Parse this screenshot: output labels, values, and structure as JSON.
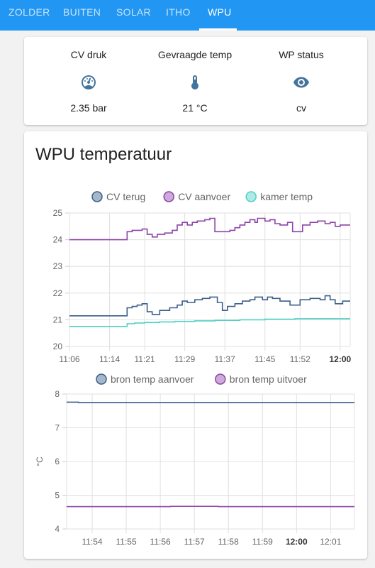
{
  "tabs": [
    {
      "label": "ZOLDER",
      "active": false
    },
    {
      "label": "BUITEN",
      "active": false
    },
    {
      "label": "SOLAR",
      "active": false
    },
    {
      "label": "ITHO",
      "active": false
    },
    {
      "label": "WPU",
      "active": true
    }
  ],
  "colors": {
    "accent": "#2196f3",
    "cv_terug": "#3b5f8a",
    "cv_aanvoer": "#8e44a8",
    "kamer_temp": "#4fd1c5",
    "bron_aanvoer": "#3b5f8a",
    "bron_uitvoer": "#8e44a8",
    "icon": "#44739e"
  },
  "glance": [
    {
      "name": "CV druk",
      "icon": "gauge-icon",
      "state": "2.35 bar"
    },
    {
      "name": "Gevraagde temp",
      "icon": "thermometer-icon",
      "state": "21 °C"
    },
    {
      "name": "WP status",
      "icon": "eye-icon",
      "state": "cv"
    }
  ],
  "history_title": "WPU temperatuur",
  "chart_data": [
    {
      "type": "line",
      "title": "",
      "xlabel": "",
      "ylabel": "",
      "ylim": [
        20,
        25
      ],
      "yticks": [
        "20",
        "21",
        "22",
        "23",
        "24",
        "25"
      ],
      "xticks": [
        "11:06",
        "11:14",
        "11:21",
        "11:29",
        "11:37",
        "11:45",
        "11:52",
        "12:00"
      ],
      "x_tick_minutes": [
        366,
        374,
        381,
        389,
        397,
        405,
        412,
        420
      ],
      "xlim_minutes": [
        366,
        422
      ],
      "legend_position": "top",
      "grid": true,
      "series": [
        {
          "name": "CV terug",
          "color": "#3b5f8a",
          "points": [
            [
              366,
              21.15
            ],
            [
              377.5,
              21.15
            ],
            [
              377.5,
              21.45
            ],
            [
              378.5,
              21.45
            ],
            [
              378.5,
              21.5
            ],
            [
              379.5,
              21.5
            ],
            [
              379.5,
              21.55
            ],
            [
              380.5,
              21.55
            ],
            [
              380.5,
              21.6
            ],
            [
              381.5,
              21.6
            ],
            [
              381.5,
              21.3
            ],
            [
              382.5,
              21.3
            ],
            [
              382.5,
              21.2
            ],
            [
              384,
              21.2
            ],
            [
              384,
              21.35
            ],
            [
              386,
              21.35
            ],
            [
              386,
              21.45
            ],
            [
              387.5,
              21.45
            ],
            [
              387.5,
              21.55
            ],
            [
              388.5,
              21.55
            ],
            [
              388.5,
              21.7
            ],
            [
              389.5,
              21.7
            ],
            [
              389.5,
              21.65
            ],
            [
              391,
              21.65
            ],
            [
              391,
              21.75
            ],
            [
              392.5,
              21.75
            ],
            [
              392.5,
              21.8
            ],
            [
              394,
              21.8
            ],
            [
              394,
              21.85
            ],
            [
              395.5,
              21.85
            ],
            [
              395.5,
              21.65
            ],
            [
              396.5,
              21.65
            ],
            [
              396.5,
              21.35
            ],
            [
              397.5,
              21.35
            ],
            [
              397.5,
              21.5
            ],
            [
              399,
              21.5
            ],
            [
              399,
              21.6
            ],
            [
              400.5,
              21.6
            ],
            [
              400.5,
              21.7
            ],
            [
              402,
              21.7
            ],
            [
              402,
              21.75
            ],
            [
              403,
              21.75
            ],
            [
              403,
              21.85
            ],
            [
              404.5,
              21.85
            ],
            [
              404.5,
              21.75
            ],
            [
              405.5,
              21.75
            ],
            [
              405.5,
              21.85
            ],
            [
              406.5,
              21.85
            ],
            [
              406.5,
              21.8
            ],
            [
              408,
              21.8
            ],
            [
              408,
              21.7
            ],
            [
              410,
              21.7
            ],
            [
              410,
              21.55
            ],
            [
              412,
              21.55
            ],
            [
              412,
              21.75
            ],
            [
              414,
              21.75
            ],
            [
              414,
              21.8
            ],
            [
              416,
              21.8
            ],
            [
              416,
              21.75
            ],
            [
              417,
              21.75
            ],
            [
              417,
              21.9
            ],
            [
              418,
              21.9
            ],
            [
              418,
              21.75
            ],
            [
              419,
              21.75
            ],
            [
              419,
              21.6
            ],
            [
              420.5,
              21.6
            ],
            [
              420.5,
              21.7
            ],
            [
              422,
              21.7
            ]
          ]
        },
        {
          "name": "CV aanvoer",
          "color": "#8e44a8",
          "points": [
            [
              366,
              24.0
            ],
            [
              377.5,
              24.0
            ],
            [
              377.5,
              24.3
            ],
            [
              378.5,
              24.3
            ],
            [
              378.5,
              24.35
            ],
            [
              380.5,
              24.35
            ],
            [
              380.5,
              24.4
            ],
            [
              381.5,
              24.4
            ],
            [
              381.5,
              24.2
            ],
            [
              382.5,
              24.2
            ],
            [
              382.5,
              24.1
            ],
            [
              383.5,
              24.1
            ],
            [
              383.5,
              24.2
            ],
            [
              385,
              24.2
            ],
            [
              385,
              24.25
            ],
            [
              386.5,
              24.25
            ],
            [
              386.5,
              24.35
            ],
            [
              387.5,
              24.35
            ],
            [
              387.5,
              24.55
            ],
            [
              388.5,
              24.55
            ],
            [
              388.5,
              24.65
            ],
            [
              389.5,
              24.65
            ],
            [
              389.5,
              24.55
            ],
            [
              390.5,
              24.55
            ],
            [
              390.5,
              24.65
            ],
            [
              391.5,
              24.65
            ],
            [
              391.5,
              24.7
            ],
            [
              393,
              24.7
            ],
            [
              393,
              24.75
            ],
            [
              394,
              24.75
            ],
            [
              394,
              24.8
            ],
            [
              395,
              24.8
            ],
            [
              395,
              24.3
            ],
            [
              398,
              24.3
            ],
            [
              398,
              24.35
            ],
            [
              399,
              24.35
            ],
            [
              399,
              24.45
            ],
            [
              400,
              24.45
            ],
            [
              400,
              24.55
            ],
            [
              401,
              24.55
            ],
            [
              401,
              24.65
            ],
            [
              402,
              24.65
            ],
            [
              402,
              24.75
            ],
            [
              403,
              24.75
            ],
            [
              403,
              24.65
            ],
            [
              403.5,
              24.65
            ],
            [
              403.5,
              24.8
            ],
            [
              405,
              24.8
            ],
            [
              405,
              24.7
            ],
            [
              406,
              24.7
            ],
            [
              406,
              24.75
            ],
            [
              407,
              24.75
            ],
            [
              407,
              24.6
            ],
            [
              408,
              24.6
            ],
            [
              408,
              24.55
            ],
            [
              409.5,
              24.55
            ],
            [
              409.5,
              24.65
            ],
            [
              410.5,
              24.65
            ],
            [
              410.5,
              24.3
            ],
            [
              412.5,
              24.3
            ],
            [
              412.5,
              24.55
            ],
            [
              414,
              24.55
            ],
            [
              414,
              24.65
            ],
            [
              415.5,
              24.65
            ],
            [
              415.5,
              24.7
            ],
            [
              417,
              24.7
            ],
            [
              417,
              24.6
            ],
            [
              418,
              24.6
            ],
            [
              418,
              24.65
            ],
            [
              419,
              24.65
            ],
            [
              419,
              24.5
            ],
            [
              420,
              24.5
            ],
            [
              420,
              24.55
            ],
            [
              422,
              24.55
            ]
          ]
        },
        {
          "name": "kamer temp",
          "color": "#4fd1c5",
          "points": [
            [
              366,
              20.75
            ],
            [
              377.5,
              20.75
            ],
            [
              377.5,
              20.85
            ],
            [
              379,
              20.85
            ],
            [
              379,
              20.88
            ],
            [
              381,
              20.88
            ],
            [
              381,
              20.9
            ],
            [
              384,
              20.9
            ],
            [
              384,
              20.92
            ],
            [
              387,
              20.92
            ],
            [
              387,
              20.94
            ],
            [
              391,
              20.94
            ],
            [
              391,
              20.96
            ],
            [
              395,
              20.96
            ],
            [
              395,
              20.98
            ],
            [
              400,
              20.98
            ],
            [
              400,
              21.0
            ],
            [
              405,
              21.0
            ],
            [
              405,
              21.02
            ],
            [
              411,
              21.02
            ],
            [
              411,
              21.04
            ],
            [
              422,
              21.04
            ]
          ]
        }
      ]
    },
    {
      "type": "line",
      "title": "",
      "xlabel": "",
      "ylabel": "°C",
      "ylim": [
        4,
        8
      ],
      "yticks": [
        "4",
        "5",
        "6",
        "7",
        "8"
      ],
      "xticks": [
        "11:54",
        "11:55",
        "11:56",
        "11:57",
        "11:58",
        "11:59",
        "12:00",
        "12:01"
      ],
      "x_tick_minutes": [
        414,
        415,
        416,
        417,
        418,
        419,
        420,
        421
      ],
      "xlim_minutes": [
        413.25,
        421.7
      ],
      "legend_position": "top",
      "grid": true,
      "series": [
        {
          "name": "bron temp aanvoer",
          "color": "#3b5f8a",
          "points": [
            [
              413.25,
              7.76
            ],
            [
              413.6,
              7.76
            ],
            [
              413.6,
              7.75
            ],
            [
              421.7,
              7.75
            ]
          ]
        },
        {
          "name": "bron temp uitvoer",
          "color": "#8e44a8",
          "points": [
            [
              413.25,
              4.66
            ],
            [
              416.3,
              4.66
            ],
            [
              416.3,
              4.67
            ],
            [
              417.7,
              4.67
            ],
            [
              417.7,
              4.66
            ],
            [
              421.7,
              4.66
            ]
          ]
        }
      ]
    }
  ]
}
